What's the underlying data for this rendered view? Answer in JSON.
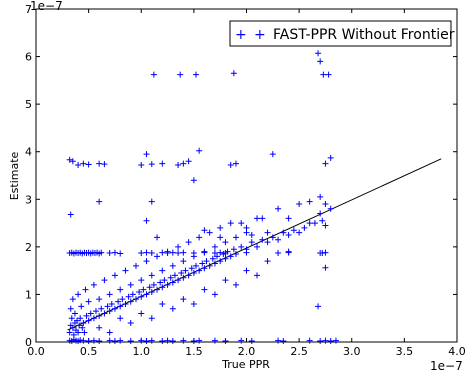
{
  "chart_data": {
    "type": "scatter",
    "xlabel": "True PPR",
    "ylabel": "Estimate",
    "xlim": [
      0,
      4.0
    ],
    "ylim": [
      0,
      7
    ],
    "x_scale_label": "1e−7",
    "y_scale_label": "1e−7",
    "x_ticks": [
      0.0,
      0.5,
      1.0,
      1.5,
      2.0,
      2.5,
      3.0,
      3.5,
      4.0
    ],
    "x_tick_labels": [
      "0.0",
      "0.5",
      "1.0",
      "1.5",
      "2.0",
      "2.5",
      "3.0",
      "3.5",
      "4.0"
    ],
    "y_ticks": [
      0,
      1,
      2,
      3,
      4,
      5,
      6,
      7
    ],
    "y_tick_labels": [
      "0",
      "1",
      "2",
      "3",
      "4",
      "5",
      "6",
      "7"
    ],
    "legend": {
      "position": "upper-right",
      "label": "FAST-PPR Without Frontier"
    },
    "reference_line": {
      "x": [
        0.3,
        3.85
      ],
      "y": [
        0.25,
        3.85
      ]
    },
    "series": [
      {
        "name": "FAST-PPR Without Frontier",
        "marker": "+",
        "color": "#0000ff",
        "points": [
          [
            0.32,
            0.03
          ],
          [
            0.34,
            0.02
          ],
          [
            0.36,
            0.05
          ],
          [
            0.38,
            0.03
          ],
          [
            0.4,
            0.02
          ],
          [
            0.42,
            0.04
          ],
          [
            0.45,
            0.03
          ],
          [
            0.5,
            0.02
          ],
          [
            0.55,
            0.03
          ],
          [
            0.6,
            0.02
          ],
          [
            0.7,
            0.03
          ],
          [
            0.75,
            0.02
          ],
          [
            0.8,
            0.03
          ],
          [
            0.9,
            0.02
          ],
          [
            1.0,
            0.03
          ],
          [
            1.05,
            0.02
          ],
          [
            1.1,
            0.03
          ],
          [
            1.2,
            0.02
          ],
          [
            1.25,
            0.03
          ],
          [
            1.3,
            0.02
          ],
          [
            1.4,
            0.03
          ],
          [
            1.5,
            0.02
          ],
          [
            1.55,
            0.03
          ],
          [
            1.7,
            0.03
          ],
          [
            1.8,
            0.02
          ],
          [
            1.95,
            0.03
          ],
          [
            2.05,
            0.02
          ],
          [
            2.3,
            0.03
          ],
          [
            2.35,
            0.02
          ],
          [
            2.6,
            0.03
          ],
          [
            2.7,
            0.02
          ],
          [
            2.75,
            0.03
          ],
          [
            2.8,
            0.02
          ],
          [
            2.85,
            0.03
          ],
          [
            0.32,
            0.2
          ],
          [
            0.33,
            0.35
          ],
          [
            0.34,
            0.5
          ],
          [
            0.35,
            0.3
          ],
          [
            0.36,
            0.15
          ],
          [
            0.37,
            0.4
          ],
          [
            0.38,
            0.25
          ],
          [
            0.39,
            0.45
          ],
          [
            0.4,
            0.2
          ],
          [
            0.41,
            0.35
          ],
          [
            0.42,
            0.5
          ],
          [
            0.44,
            0.3
          ],
          [
            0.45,
            0.4
          ],
          [
            0.46,
            0.2
          ],
          [
            0.48,
            0.55
          ],
          [
            0.5,
            0.45
          ],
          [
            0.52,
            0.6
          ],
          [
            0.55,
            0.5
          ],
          [
            0.57,
            0.65
          ],
          [
            0.6,
            0.55
          ],
          [
            0.62,
            0.7
          ],
          [
            0.65,
            0.6
          ],
          [
            0.68,
            0.75
          ],
          [
            0.7,
            0.65
          ],
          [
            0.72,
            0.8
          ],
          [
            0.75,
            0.7
          ],
          [
            0.78,
            0.85
          ],
          [
            0.8,
            0.75
          ],
          [
            0.82,
            0.9
          ],
          [
            0.85,
            0.8
          ],
          [
            0.88,
            0.95
          ],
          [
            0.9,
            0.85
          ],
          [
            0.92,
            1.0
          ],
          [
            0.95,
            0.9
          ],
          [
            0.98,
            1.05
          ],
          [
            1.0,
            0.95
          ],
          [
            1.02,
            1.1
          ],
          [
            1.05,
            1.0
          ],
          [
            1.08,
            1.15
          ],
          [
            1.1,
            1.05
          ],
          [
            1.12,
            1.2
          ],
          [
            1.15,
            1.1
          ],
          [
            1.18,
            1.25
          ],
          [
            1.2,
            1.15
          ],
          [
            1.22,
            1.3
          ],
          [
            1.25,
            1.2
          ],
          [
            1.28,
            1.35
          ],
          [
            1.3,
            1.25
          ],
          [
            1.32,
            1.4
          ],
          [
            1.35,
            1.3
          ],
          [
            1.38,
            1.45
          ],
          [
            1.4,
            1.35
          ],
          [
            1.42,
            1.5
          ],
          [
            1.45,
            1.4
          ],
          [
            1.48,
            1.55
          ],
          [
            1.5,
            1.45
          ],
          [
            1.52,
            1.6
          ],
          [
            1.55,
            1.5
          ],
          [
            1.58,
            1.65
          ],
          [
            1.6,
            1.55
          ],
          [
            1.62,
            1.7
          ],
          [
            1.65,
            1.6
          ],
          [
            1.68,
            1.75
          ],
          [
            1.7,
            1.65
          ],
          [
            1.72,
            1.8
          ],
          [
            1.75,
            1.7
          ],
          [
            1.78,
            1.85
          ],
          [
            1.8,
            1.75
          ],
          [
            1.82,
            1.9
          ],
          [
            1.85,
            1.8
          ],
          [
            1.88,
            1.95
          ],
          [
            1.9,
            1.85
          ],
          [
            1.95,
            2.0
          ],
          [
            2.0,
            1.95
          ],
          [
            2.05,
            2.1
          ],
          [
            2.1,
            2.0
          ],
          [
            2.15,
            2.15
          ],
          [
            2.2,
            2.1
          ],
          [
            2.25,
            2.2
          ],
          [
            2.3,
            2.15
          ],
          [
            2.35,
            2.3
          ],
          [
            2.4,
            2.25
          ],
          [
            2.45,
            2.35
          ],
          [
            2.5,
            2.3
          ],
          [
            2.55,
            2.4
          ],
          [
            0.33,
            0.7
          ],
          [
            0.35,
            0.9
          ],
          [
            0.37,
            0.6
          ],
          [
            0.4,
            1.0
          ],
          [
            0.43,
            0.75
          ],
          [
            0.47,
            1.1
          ],
          [
            0.5,
            0.85
          ],
          [
            0.55,
            1.2
          ],
          [
            0.6,
            0.9
          ],
          [
            0.65,
            1.3
          ],
          [
            0.7,
            1.0
          ],
          [
            0.75,
            1.4
          ],
          [
            0.8,
            1.1
          ],
          [
            0.85,
            1.5
          ],
          [
            0.9,
            1.2
          ],
          [
            0.95,
            1.6
          ],
          [
            1.0,
            1.3
          ],
          [
            1.05,
            1.7
          ],
          [
            1.1,
            1.4
          ],
          [
            1.15,
            1.8
          ],
          [
            1.2,
            1.5
          ],
          [
            1.25,
            1.9
          ],
          [
            1.3,
            1.6
          ],
          [
            1.35,
            2.0
          ],
          [
            1.4,
            1.7
          ],
          [
            1.45,
            2.1
          ],
          [
            1.5,
            1.8
          ],
          [
            1.55,
            2.2
          ],
          [
            1.6,
            1.9
          ],
          [
            1.65,
            2.3
          ],
          [
            1.7,
            2.0
          ],
          [
            1.75,
            2.4
          ],
          [
            1.8,
            2.1
          ],
          [
            1.85,
            2.5
          ],
          [
            1.9,
            2.2
          ],
          [
            2.0,
            2.4
          ],
          [
            2.1,
            2.6
          ],
          [
            2.2,
            2.3
          ],
          [
            2.3,
            2.8
          ],
          [
            2.4,
            2.6
          ],
          [
            2.5,
            2.9
          ],
          [
            2.6,
            2.5
          ],
          [
            2.7,
            2.7
          ],
          [
            2.8,
            2.8
          ],
          [
            0.6,
            0.3
          ],
          [
            0.8,
            0.5
          ],
          [
            1.0,
            0.6
          ],
          [
            1.2,
            0.8
          ],
          [
            1.4,
            0.9
          ],
          [
            1.6,
            1.1
          ],
          [
            1.8,
            1.3
          ],
          [
            2.0,
            1.5
          ],
          [
            2.2,
            1.7
          ],
          [
            2.4,
            1.9
          ],
          [
            0.7,
            0.2
          ],
          [
            0.9,
            0.4
          ],
          [
            1.1,
            0.5
          ],
          [
            1.3,
            0.7
          ],
          [
            1.5,
            0.8
          ],
          [
            1.7,
            1.0
          ],
          [
            1.9,
            1.2
          ],
          [
            2.1,
            1.4
          ],
          [
            0.32,
            1.87
          ],
          [
            0.34,
            1.88
          ],
          [
            0.36,
            1.86
          ],
          [
            0.38,
            1.88
          ],
          [
            0.4,
            1.87
          ],
          [
            0.42,
            1.88
          ],
          [
            0.44,
            1.86
          ],
          [
            0.46,
            1.88
          ],
          [
            0.48,
            1.87
          ],
          [
            0.5,
            1.88
          ],
          [
            0.52,
            1.86
          ],
          [
            0.54,
            1.88
          ],
          [
            0.56,
            1.87
          ],
          [
            0.58,
            1.88
          ],
          [
            0.6,
            1.86
          ],
          [
            0.62,
            1.88
          ],
          [
            0.7,
            1.87
          ],
          [
            0.75,
            1.88
          ],
          [
            0.8,
            1.86
          ],
          [
            1.0,
            1.87
          ],
          [
            1.05,
            1.88
          ],
          [
            1.1,
            1.87
          ],
          [
            1.2,
            1.88
          ],
          [
            1.25,
            1.87
          ],
          [
            1.3,
            1.88
          ],
          [
            1.35,
            1.87
          ],
          [
            1.4,
            1.88
          ],
          [
            1.5,
            1.87
          ],
          [
            1.6,
            1.88
          ],
          [
            1.7,
            1.87
          ],
          [
            1.75,
            1.88
          ],
          [
            1.8,
            1.87
          ],
          [
            2.0,
            1.88
          ],
          [
            2.3,
            1.87
          ],
          [
            2.4,
            1.88
          ],
          [
            2.7,
            1.87
          ],
          [
            2.75,
            1.88
          ],
          [
            0.32,
            3.83
          ],
          [
            0.35,
            3.8
          ],
          [
            0.4,
            3.72
          ],
          [
            0.45,
            3.75
          ],
          [
            0.5,
            3.73
          ],
          [
            0.6,
            3.75
          ],
          [
            0.65,
            3.74
          ],
          [
            1.0,
            3.72
          ],
          [
            1.05,
            3.95
          ],
          [
            1.1,
            3.74
          ],
          [
            1.2,
            3.75
          ],
          [
            1.35,
            3.72
          ],
          [
            1.4,
            3.75
          ],
          [
            1.45,
            3.8
          ],
          [
            1.55,
            4.02
          ],
          [
            1.5,
            3.4
          ],
          [
            1.85,
            3.72
          ],
          [
            1.9,
            3.75
          ],
          [
            2.25,
            3.95
          ],
          [
            2.75,
            3.75
          ],
          [
            2.8,
            3.87
          ],
          [
            0.33,
            2.68
          ],
          [
            0.6,
            2.95
          ],
          [
            1.05,
            2.55
          ],
          [
            1.1,
            2.95
          ],
          [
            1.15,
            2.2
          ],
          [
            1.6,
            2.35
          ],
          [
            1.75,
            2.2
          ],
          [
            2.05,
            2.25
          ],
          [
            2.15,
            2.6
          ],
          [
            2.6,
            2.95
          ],
          [
            2.65,
            2.5
          ],
          [
            2.7,
            3.05
          ],
          [
            2.72,
            2.55
          ],
          [
            2.75,
            2.45
          ],
          [
            2.75,
            2.9
          ],
          [
            2.0,
            2.3
          ],
          [
            1.95,
            2.5
          ],
          [
            1.12,
            5.62
          ],
          [
            1.37,
            5.62
          ],
          [
            1.52,
            5.62
          ],
          [
            1.88,
            5.65
          ],
          [
            2.68,
            6.07
          ],
          [
            2.7,
            5.9
          ],
          [
            2.73,
            5.62
          ],
          [
            2.78,
            5.62
          ],
          [
            2.68,
            0.75
          ],
          [
            2.72,
            1.87
          ],
          [
            2.75,
            1.56
          ]
        ]
      }
    ]
  }
}
